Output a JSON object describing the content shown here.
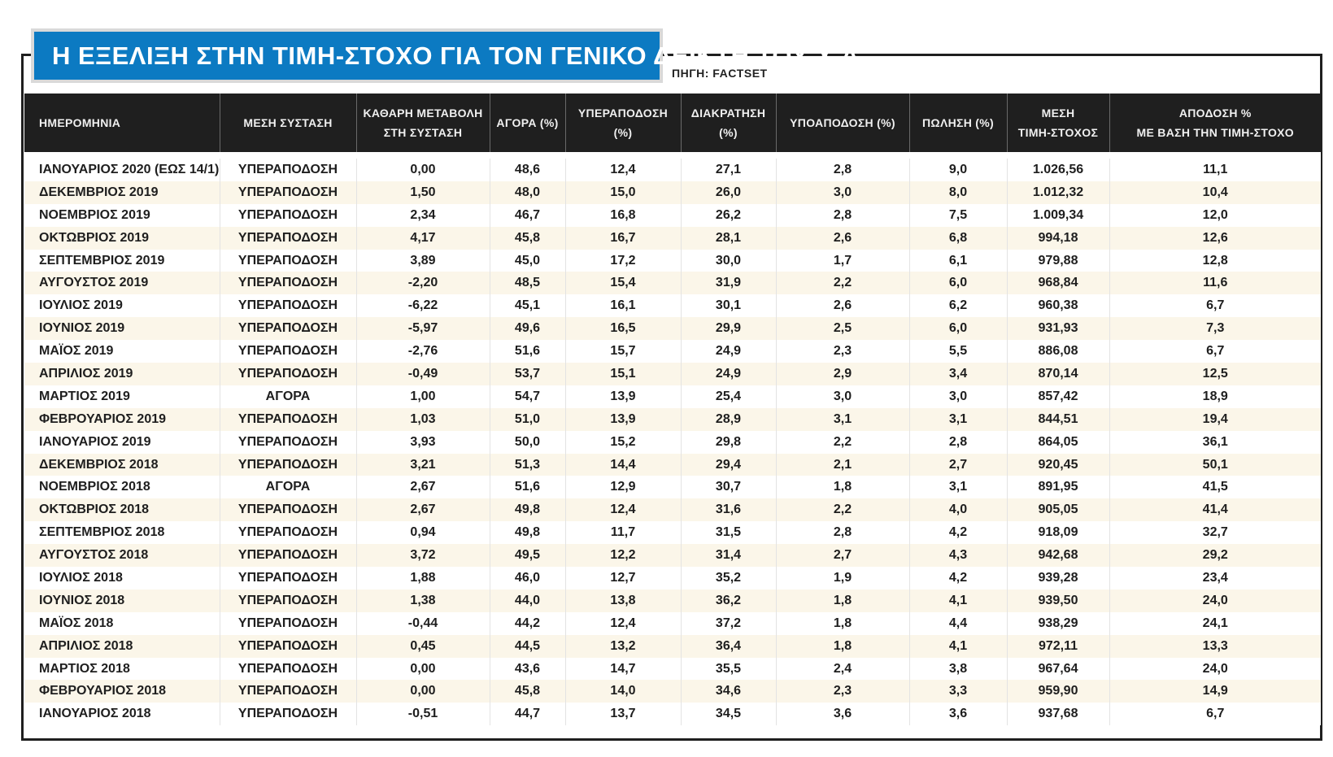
{
  "title": "Η ΕΞΕΛΙΞΗ ΣΤΗΝ ΤΙΜΗ-ΣΤΟΧΟ ΓΙΑ ΤΟΝ ΓΕΝΙΚΟ ΔΕΙΚΤΗ ΤΟΥ Χ.Α.",
  "source": "ΠΗΓΗ: FACTSET",
  "colors": {
    "title_bg": "#0c7ac2",
    "header_bg": "#1f1f1f",
    "row_stripe": "#fbf6e9"
  },
  "chart_data": {
    "type": "table",
    "columns": [
      [
        "ΗΜΕΡΟΜΗΝΙΑ"
      ],
      [
        "ΜΕΣΗ ΣΥΣΤΑΣΗ"
      ],
      [
        "ΚΑΘΑΡΗ ΜΕΤΑΒΟΛΗ",
        "ΣΤΗ ΣΥΣΤΑΣΗ"
      ],
      [
        "ΑΓΟΡΑ (%)"
      ],
      [
        "ΥΠΕΡΑΠΟΔΟΣΗ (%)"
      ],
      [
        "ΔΙΑΚΡΑΤΗΣΗ (%)"
      ],
      [
        "ΥΠΟΑΠΟΔΟΣΗ (%)"
      ],
      [
        "ΠΩΛΗΣΗ (%)"
      ],
      [
        "ΜΕΣΗ",
        "ΤΙΜΗ-ΣΤΟΧΟΣ"
      ],
      [
        "ΑΠΟΔΟΣΗ %",
        "ΜΕ ΒΑΣΗ ΤΗΝ ΤΙΜΗ-ΣΤΟΧΟ"
      ]
    ],
    "rows": [
      [
        "ΙΑΝΟΥΑΡΙΟΣ 2020 (ΕΩΣ 14/1)",
        "ΥΠΕΡΑΠΟΔΟΣΗ",
        "0,00",
        "48,6",
        "12,4",
        "27,1",
        "2,8",
        "9,0",
        "1.026,56",
        "11,1"
      ],
      [
        "ΔΕΚΕΜΒΡΙΟΣ 2019",
        "ΥΠΕΡΑΠΟΔΟΣΗ",
        "1,50",
        "48,0",
        "15,0",
        "26,0",
        "3,0",
        "8,0",
        "1.012,32",
        "10,4"
      ],
      [
        "ΝΟΕΜΒΡΙΟΣ 2019",
        "ΥΠΕΡΑΠΟΔΟΣΗ",
        "2,34",
        "46,7",
        "16,8",
        "26,2",
        "2,8",
        "7,5",
        "1.009,34",
        "12,0"
      ],
      [
        "ΟΚΤΩΒΡΙΟΣ 2019",
        "ΥΠΕΡΑΠΟΔΟΣΗ",
        "4,17",
        "45,8",
        "16,7",
        "28,1",
        "2,6",
        "6,8",
        "994,18",
        "12,6"
      ],
      [
        "ΣΕΠΤΕΜΒΡΙΟΣ 2019",
        "ΥΠΕΡΑΠΟΔΟΣΗ",
        "3,89",
        "45,0",
        "17,2",
        "30,0",
        "1,7",
        "6,1",
        "979,88",
        "12,8"
      ],
      [
        "ΑΥΓΟΥΣΤΟΣ 2019",
        "ΥΠΕΡΑΠΟΔΟΣΗ",
        "-2,20",
        "48,5",
        "15,4",
        "31,9",
        "2,2",
        "6,0",
        "968,84",
        "11,6"
      ],
      [
        "ΙΟΥΛΙΟΣ 2019",
        "ΥΠΕΡΑΠΟΔΟΣΗ",
        "-6,22",
        "45,1",
        "16,1",
        "30,1",
        "2,6",
        "6,2",
        "960,38",
        "6,7"
      ],
      [
        "ΙΟΥΝΙΟΣ 2019",
        "ΥΠΕΡΑΠΟΔΟΣΗ",
        "-5,97",
        "49,6",
        "16,5",
        "29,9",
        "2,5",
        "6,0",
        "931,93",
        "7,3"
      ],
      [
        "ΜΑΪΟΣ 2019",
        "ΥΠΕΡΑΠΟΔΟΣΗ",
        "-2,76",
        "51,6",
        "15,7",
        "24,9",
        "2,3",
        "5,5",
        "886,08",
        "6,7"
      ],
      [
        "ΑΠΡΙΛΙΟΣ 2019",
        "ΥΠΕΡΑΠΟΔΟΣΗ",
        "-0,49",
        "53,7",
        "15,1",
        "24,9",
        "2,9",
        "3,4",
        "870,14",
        "12,5"
      ],
      [
        "ΜΑΡΤΙΟΣ 2019",
        "ΑΓΟΡΑ",
        "1,00",
        "54,7",
        "13,9",
        "25,4",
        "3,0",
        "3,0",
        "857,42",
        "18,9"
      ],
      [
        "ΦΕΒΡΟΥΑΡΙΟΣ 2019",
        "ΥΠΕΡΑΠΟΔΟΣΗ",
        "1,03",
        "51,0",
        "13,9",
        "28,9",
        "3,1",
        "3,1",
        "844,51",
        "19,4"
      ],
      [
        "ΙΑΝΟΥΑΡΙΟΣ 2019",
        "ΥΠΕΡΑΠΟΔΟΣΗ",
        "3,93",
        "50,0",
        "15,2",
        "29,8",
        "2,2",
        "2,8",
        "864,05",
        "36,1"
      ],
      [
        "ΔΕΚΕΜΒΡΙΟΣ 2018",
        "ΥΠΕΡΑΠΟΔΟΣΗ",
        "3,21",
        "51,3",
        "14,4",
        "29,4",
        "2,1",
        "2,7",
        "920,45",
        "50,1"
      ],
      [
        "ΝΟΕΜΒΡΙΟΣ 2018",
        "ΑΓΟΡΑ",
        "2,67",
        "51,6",
        "12,9",
        "30,7",
        "1,8",
        "3,1",
        "891,95",
        "41,5"
      ],
      [
        "ΟΚΤΩΒΡΙΟΣ 2018",
        "ΥΠΕΡΑΠΟΔΟΣΗ",
        "2,67",
        "49,8",
        "12,4",
        "31,6",
        "2,2",
        "4,0",
        "905,05",
        "41,4"
      ],
      [
        "ΣΕΠΤΕΜΒΡΙΟΣ 2018",
        "ΥΠΕΡΑΠΟΔΟΣΗ",
        "0,94",
        "49,8",
        "11,7",
        "31,5",
        "2,8",
        "4,2",
        "918,09",
        "32,7"
      ],
      [
        "ΑΥΓΟΥΣΤΟΣ 2018",
        "ΥΠΕΡΑΠΟΔΟΣΗ",
        "3,72",
        "49,5",
        "12,2",
        "31,4",
        "2,7",
        "4,3",
        "942,68",
        "29,2"
      ],
      [
        "ΙΟΥΛΙΟΣ 2018",
        "ΥΠΕΡΑΠΟΔΟΣΗ",
        "1,88",
        "46,0",
        "12,7",
        "35,2",
        "1,9",
        "4,2",
        "939,28",
        "23,4"
      ],
      [
        "ΙΟΥΝΙΟΣ 2018",
        "ΥΠΕΡΑΠΟΔΟΣΗ",
        "1,38",
        "44,0",
        "13,8",
        "36,2",
        "1,8",
        "4,1",
        "939,50",
        "24,0"
      ],
      [
        "ΜΑΪΟΣ 2018",
        "ΥΠΕΡΑΠΟΔΟΣΗ",
        "-0,44",
        "44,2",
        "12,4",
        "37,2",
        "1,8",
        "4,4",
        "938,29",
        "24,1"
      ],
      [
        "ΑΠΡΙΛΙΟΣ 2018",
        "ΥΠΕΡΑΠΟΔΟΣΗ",
        "0,45",
        "44,5",
        "13,2",
        "36,4",
        "1,8",
        "4,1",
        "972,11",
        "13,3"
      ],
      [
        "ΜΑΡΤΙΟΣ 2018",
        "ΥΠΕΡΑΠΟΔΟΣΗ",
        "0,00",
        "43,6",
        "14,7",
        "35,5",
        "2,4",
        "3,8",
        "967,64",
        "24,0"
      ],
      [
        "ΦΕΒΡΟΥΑΡΙΟΣ 2018",
        "ΥΠΕΡΑΠΟΔΟΣΗ",
        "0,00",
        "45,8",
        "14,0",
        "34,6",
        "2,3",
        "3,3",
        "959,90",
        "14,9"
      ],
      [
        "ΙΑΝΟΥΑΡΙΟΣ 2018",
        "ΥΠΕΡΑΠΟΔΟΣΗ",
        "-0,51",
        "44,7",
        "13,7",
        "34,5",
        "3,6",
        "3,6",
        "937,68",
        "6,7"
      ]
    ]
  }
}
